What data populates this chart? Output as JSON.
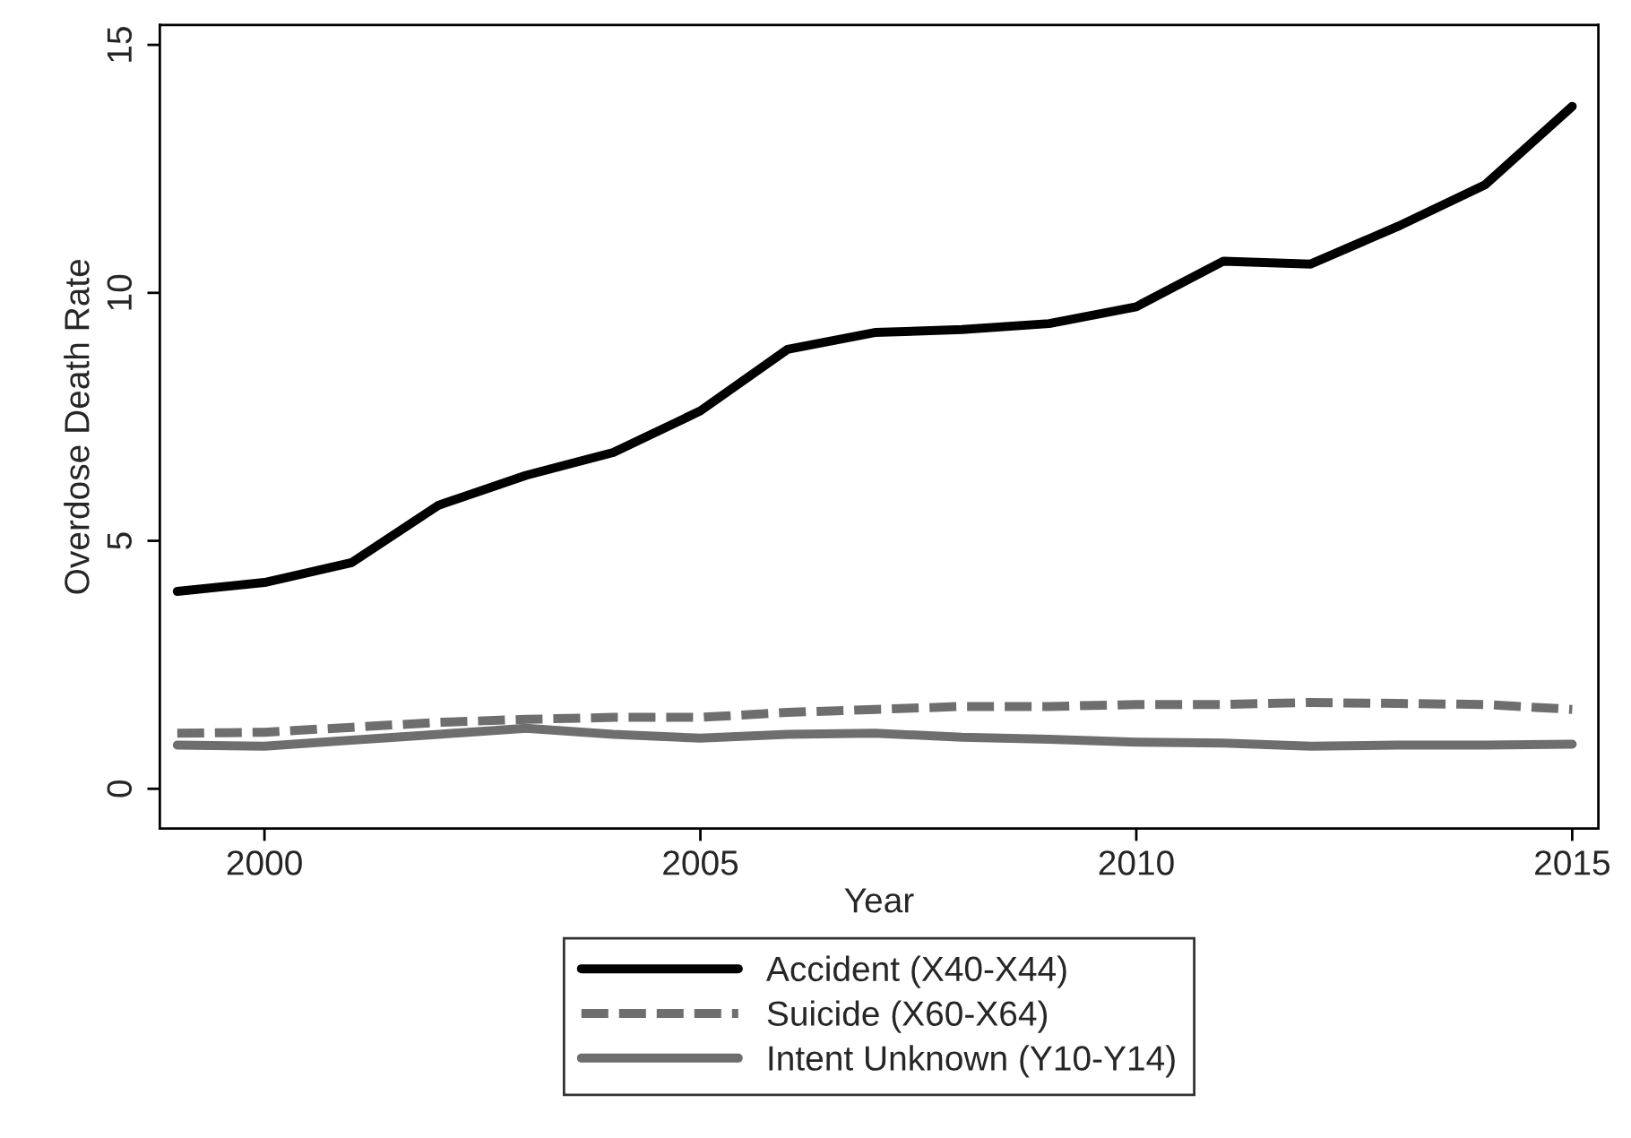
{
  "chart_data": {
    "type": "line",
    "xlabel": "Year",
    "ylabel": "Overdose Death Rate",
    "x": [
      1999,
      2000,
      2001,
      2002,
      2003,
      2004,
      2005,
      2006,
      2007,
      2008,
      2009,
      2010,
      2011,
      2012,
      2013,
      2014,
      2015
    ],
    "series": [
      {
        "name": "Accident (X40-X44)",
        "color": "#000000",
        "line_style": "solid",
        "values": [
          3.98,
          4.16,
          4.56,
          5.72,
          6.32,
          6.78,
          7.62,
          8.86,
          9.2,
          9.26,
          9.38,
          9.72,
          10.64,
          10.58,
          11.34,
          12.18,
          13.76
        ]
      },
      {
        "name": "Suicide (X60-X64)",
        "color": "#6e6e6e",
        "line_style": "dashed",
        "values": [
          1.12,
          1.14,
          1.24,
          1.34,
          1.4,
          1.44,
          1.44,
          1.54,
          1.6,
          1.66,
          1.66,
          1.7,
          1.7,
          1.74,
          1.72,
          1.7,
          1.6
        ]
      },
      {
        "name": "Intent Unknown (Y10-Y14)",
        "color": "#6e6e6e",
        "line_style": "solid",
        "values": [
          0.88,
          0.86,
          0.98,
          1.1,
          1.22,
          1.1,
          1.02,
          1.1,
          1.12,
          1.04,
          1.0,
          0.94,
          0.92,
          0.86,
          0.88,
          0.88,
          0.9
        ]
      }
    ],
    "xlim": [
      1998.8,
      2015.3
    ],
    "xticks": [
      2000,
      2005,
      2010,
      2015
    ],
    "ylim": [
      -0.8,
      15.4
    ],
    "yticks": [
      0,
      5,
      10,
      15
    ],
    "grid": false,
    "legend": "bottom"
  }
}
